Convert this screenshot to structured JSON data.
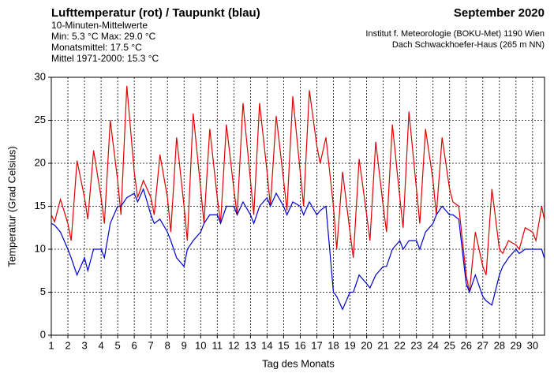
{
  "chart_data": {
    "type": "line",
    "title": "Lufttemperatur (rot) / Taupunkt (blau)",
    "info_lines": [
      "10-Minuten-Mittelwerte",
      "Min:   5.3 °C   Max:  29.0 °C",
      "Monatsmittel:  17.5 °C",
      "Mittel 1971-2000:  15.3 °C"
    ],
    "date_title": "September 2020",
    "source_lines": [
      "Institut f. Meteorologie (BOKU-Met) 1190 Wien",
      "Dach Schwackhoefer-Haus (265 m NN)"
    ],
    "x_label": "Tag des Monats",
    "y_label": "Temperatur (Grad Celsius)",
    "xlim": [
      1,
      30.72
    ],
    "ylim": [
      0,
      30
    ],
    "xticks": [
      1,
      2,
      3,
      4,
      5,
      6,
      7,
      8,
      9,
      10,
      11,
      12,
      13,
      14,
      15,
      16,
      17,
      18,
      19,
      20,
      21,
      22,
      23,
      24,
      25,
      26,
      27,
      28,
      29,
      30
    ],
    "yticks": [
      0,
      5,
      10,
      15,
      20,
      25,
      30
    ],
    "grid": true,
    "x": [
      1,
      1.2,
      1.55,
      2,
      2.2,
      2.55,
      3,
      3.2,
      3.55,
      4,
      4.2,
      4.55,
      5,
      5.2,
      5.55,
      6,
      6.2,
      6.55,
      7,
      7.2,
      7.55,
      8,
      8.2,
      8.55,
      9,
      9.2,
      9.55,
      10,
      10.2,
      10.55,
      11,
      11.2,
      11.55,
      12,
      12.2,
      12.55,
      13,
      13.2,
      13.55,
      14,
      14.2,
      14.55,
      15,
      15.2,
      15.55,
      16,
      16.2,
      16.55,
      17,
      17.2,
      17.55,
      18,
      18.2,
      18.55,
      19,
      19.2,
      19.55,
      20,
      20.2,
      20.55,
      21,
      21.2,
      21.55,
      22,
      22.2,
      22.55,
      23,
      23.2,
      23.55,
      24,
      24.2,
      24.55,
      25,
      25.2,
      25.55,
      26,
      26.2,
      26.55,
      27,
      27.2,
      27.55,
      28,
      28.2,
      28.55,
      29,
      29.2,
      29.55,
      30,
      30.2,
      30.55,
      30.7
    ],
    "series": [
      {
        "color": "#e00000",
        "values": [
          14,
          13.2,
          15.8,
          13,
          11,
          20.3,
          16,
          13.5,
          21.5,
          16,
          13,
          25,
          18,
          14,
          29,
          19,
          16,
          18,
          16,
          14,
          21,
          16,
          12,
          23,
          15,
          11,
          25.8,
          17,
          13,
          24,
          16,
          13,
          24.5,
          17,
          14,
          27,
          18,
          14,
          27,
          19,
          15,
          25.5,
          18,
          14.5,
          27.8,
          19,
          15,
          28.5,
          22,
          20,
          23,
          15,
          10,
          19,
          12,
          9,
          20.5,
          14,
          11,
          22.5,
          15,
          12,
          24.5,
          16,
          12.5,
          26,
          17,
          13,
          24,
          18,
          14,
          23,
          17,
          15.5,
          15,
          7,
          5,
          12,
          8,
          7,
          17,
          10,
          9.5,
          11,
          10.5,
          10,
          12.5,
          12,
          11,
          15,
          13.5
        ]
      },
      {
        "color": "#0000d0",
        "values": [
          13,
          12.8,
          12,
          10,
          9,
          7,
          9,
          7.5,
          10,
          10,
          9,
          13,
          15,
          15,
          16,
          16.5,
          15.5,
          17,
          14,
          13,
          13.5,
          12,
          11,
          9,
          8,
          10,
          11,
          12,
          13,
          14,
          14,
          13,
          15,
          15,
          14,
          15.5,
          14,
          13,
          15,
          16,
          15,
          16.5,
          15,
          14,
          15.5,
          15,
          14,
          15.5,
          14,
          14.5,
          15,
          5,
          4.5,
          3,
          5,
          5,
          7,
          6,
          5.5,
          7,
          8,
          8,
          10,
          11,
          10,
          11,
          11,
          10,
          12,
          13,
          14,
          15,
          14,
          14,
          13.5,
          6,
          5,
          7,
          4.5,
          4,
          3.5,
          7,
          8,
          9,
          10,
          9.5,
          10,
          10,
          10,
          10,
          9
        ]
      }
    ]
  }
}
